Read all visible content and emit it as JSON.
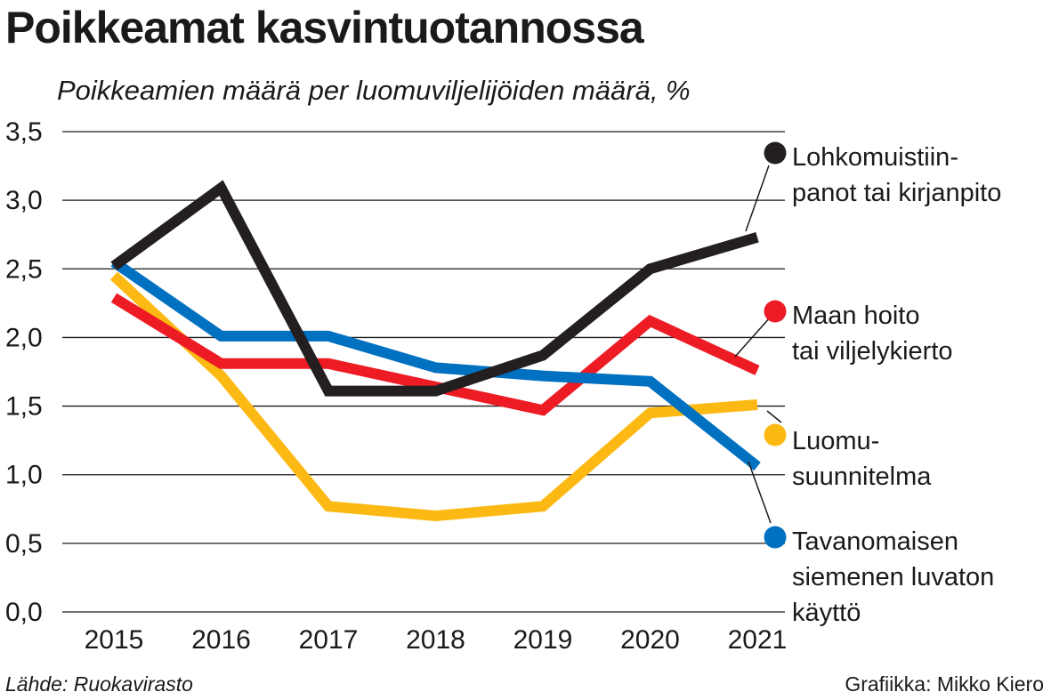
{
  "title": "Poikkeamat kasvintuotannossa",
  "subtitle": "Poikkeamien määrä per luomuviljelijöiden määrä, %",
  "source": "Lähde: Ruokavirasto",
  "credit": "Grafiikka: Mikko Kiero",
  "chart_data": {
    "type": "line",
    "title": "Poikkeamat kasvintuotannossa",
    "subtitle": "Poikkeamien määrä per luomuviljelijöiden määrä, %",
    "xlabel": "",
    "ylabel": "%",
    "ylim": [
      0,
      3.5
    ],
    "grid": true,
    "x": [
      "2015",
      "2016",
      "2017",
      "2018",
      "2019",
      "2020",
      "2021"
    ],
    "y_ticks": [
      "0,0",
      "0,5",
      "1,0",
      "1,5",
      "2,0",
      "2,5",
      "3,0",
      "3,5"
    ],
    "legend_position": "right",
    "series": [
      {
        "name": "Luomusuunnitelma",
        "label_lines": [
          "Luomu-",
          "suunnitelma"
        ],
        "color": "#FDB913",
        "values": [
          2.45,
          1.72,
          0.77,
          0.7,
          0.77,
          1.45,
          1.51
        ]
      },
      {
        "name": "Maan hoito tai viljelykierto",
        "label_lines": [
          "Maan hoito",
          "tai viljelykierto"
        ],
        "color": "#ED1C24",
        "values": [
          2.29,
          1.81,
          1.81,
          1.64,
          1.47,
          2.12,
          1.76
        ]
      },
      {
        "name": "Tavanomaisen siemenen luvaton käyttö",
        "label_lines": [
          "Tavanomaisen",
          "siemenen luvaton",
          "käyttö"
        ],
        "color": "#0070C0",
        "values": [
          2.55,
          2.01,
          2.01,
          1.78,
          1.72,
          1.68,
          1.06
        ]
      },
      {
        "name": "Lohkomuistiinpanot tai kirjanpito",
        "label_lines": [
          "Lohkomuistiin-",
          "panot tai kirjanpito"
        ],
        "color": "#231F20",
        "values": [
          2.52,
          3.09,
          1.61,
          1.61,
          1.87,
          2.5,
          2.73
        ]
      }
    ]
  }
}
